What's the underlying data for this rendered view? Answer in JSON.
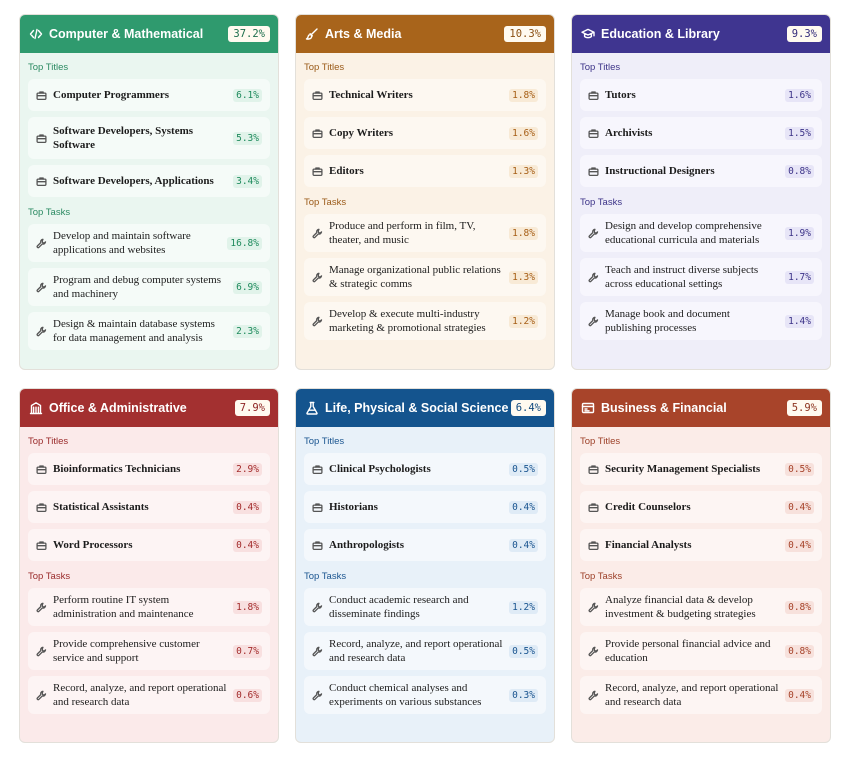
{
  "section_labels": {
    "titles": "Top Titles",
    "tasks": "Top Tasks"
  },
  "cards": [
    {
      "title": "Computer & Mathematical",
      "share": "37.2%",
      "icon": "code-icon",
      "titles": [
        {
          "label": "Computer Programmers",
          "pct": "6.1%"
        },
        {
          "label": "Software Developers, Systems Software",
          "pct": "5.3%"
        },
        {
          "label": "Software Developers, Applications",
          "pct": "3.4%"
        }
      ],
      "tasks": [
        {
          "label": "Develop and maintain software applications and websites",
          "pct": "16.8%"
        },
        {
          "label": "Program and debug computer systems and machinery",
          "pct": "6.9%"
        },
        {
          "label": "Design & maintain database systems for data management and analysis",
          "pct": "2.3%"
        }
      ]
    },
    {
      "title": "Arts & Media",
      "share": "10.3%",
      "icon": "brush-icon",
      "titles": [
        {
          "label": "Technical Writers",
          "pct": "1.8%"
        },
        {
          "label": "Copy Writers",
          "pct": "1.6%"
        },
        {
          "label": "Editors",
          "pct": "1.3%"
        }
      ],
      "tasks": [
        {
          "label": "Produce and perform in film, TV, theater, and music",
          "pct": "1.8%"
        },
        {
          "label": "Manage organizational public relations & strategic comms",
          "pct": "1.3%"
        },
        {
          "label": "Develop & execute multi-industry marketing & promotional strategies",
          "pct": "1.2%"
        }
      ]
    },
    {
      "title": "Education & Library",
      "share": "9.3%",
      "icon": "graduation-cap-icon",
      "titles": [
        {
          "label": "Tutors",
          "pct": "1.6%"
        },
        {
          "label": "Archivists",
          "pct": "1.5%"
        },
        {
          "label": "Instructional Designers",
          "pct": "0.8%"
        }
      ],
      "tasks": [
        {
          "label": "Design and develop comprehensive educational curricula and materials",
          "pct": "1.9%"
        },
        {
          "label": "Teach and instruct diverse subjects across educational settings",
          "pct": "1.7%"
        },
        {
          "label": "Manage book and document publishing processes",
          "pct": "1.4%"
        }
      ]
    },
    {
      "title": "Office & Administrative",
      "share": "7.9%",
      "icon": "building-icon",
      "titles": [
        {
          "label": "Bioinformatics Technicians",
          "pct": "2.9%"
        },
        {
          "label": "Statistical Assistants",
          "pct": "0.4%"
        },
        {
          "label": "Word Processors",
          "pct": "0.4%"
        }
      ],
      "tasks": [
        {
          "label": "Perform routine IT system administration and maintenance",
          "pct": "1.8%"
        },
        {
          "label": "Provide comprehensive customer service and support",
          "pct": "0.7%"
        },
        {
          "label": "Record, analyze, and report operational and research data",
          "pct": "0.6%"
        }
      ]
    },
    {
      "title": "Life, Physical & Social Science",
      "share": "6.4%",
      "icon": "flask-icon",
      "titles": [
        {
          "label": "Clinical Psychologists",
          "pct": "0.5%"
        },
        {
          "label": "Historians",
          "pct": "0.4%"
        },
        {
          "label": "Anthropologists",
          "pct": "0.4%"
        }
      ],
      "tasks": [
        {
          "label": "Conduct academic research and disseminate findings",
          "pct": "1.2%"
        },
        {
          "label": "Record, analyze, and report operational and research data",
          "pct": "0.5%"
        },
        {
          "label": "Conduct chemical analyses and experiments on various substances",
          "pct": "0.3%"
        }
      ]
    },
    {
      "title": "Business & Financial",
      "share": "5.9%",
      "icon": "finance-icon",
      "titles": [
        {
          "label": "Security Management Specialists",
          "pct": "0.5%"
        },
        {
          "label": "Credit Counselors",
          "pct": "0.4%"
        },
        {
          "label": "Financial Analysts",
          "pct": "0.4%"
        }
      ],
      "tasks": [
        {
          "label": "Analyze financial data & develop investment & budgeting strategies",
          "pct": "0.8%"
        },
        {
          "label": "Provide personal financial advice and education",
          "pct": "0.8%"
        },
        {
          "label": "Record, analyze, and report operational and research data",
          "pct": "0.4%"
        }
      ]
    }
  ]
}
